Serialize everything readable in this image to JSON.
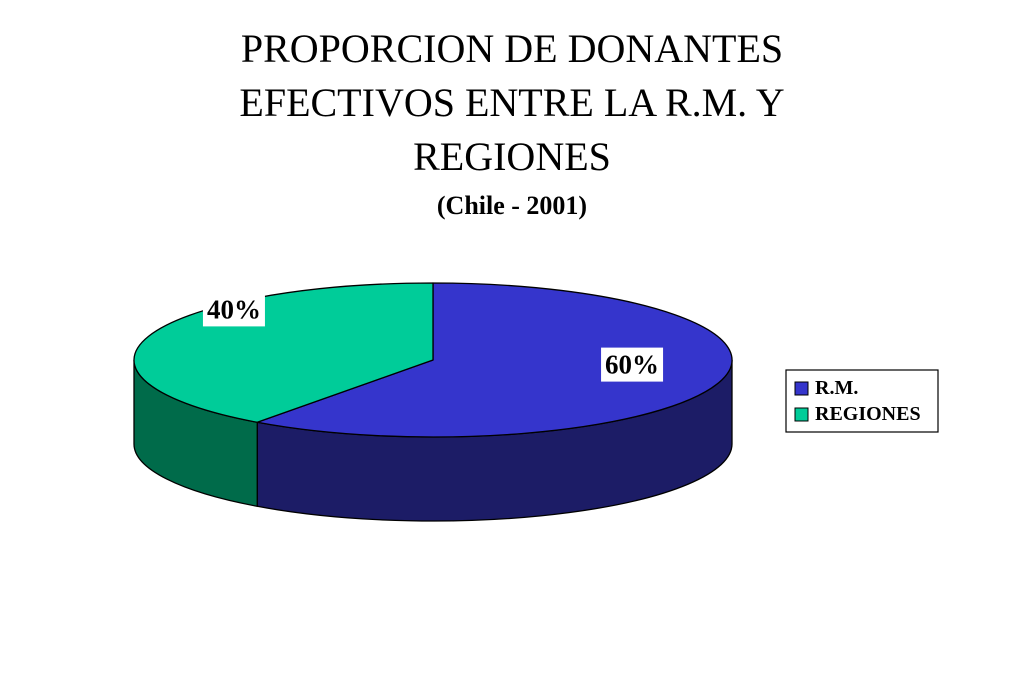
{
  "title": {
    "line1": "PROPORCION DE DONANTES",
    "line2": "EFECTIVOS ENTRE LA  R.M. Y",
    "line3": "REGIONES",
    "subtitle": "(Chile - 2001)"
  },
  "chart_data": {
    "type": "pie",
    "style": "3d",
    "categories": [
      "R.M.",
      "REGIONES"
    ],
    "values": [
      60,
      40
    ],
    "data_labels": [
      "60%",
      "40%"
    ],
    "legend_position": "right",
    "colors": {
      "R.M.": {
        "top": "#3535cc",
        "side": "#1c1c66"
      },
      "REGIONES": {
        "top": "#00cc99",
        "side": "#006b4a"
      }
    }
  }
}
